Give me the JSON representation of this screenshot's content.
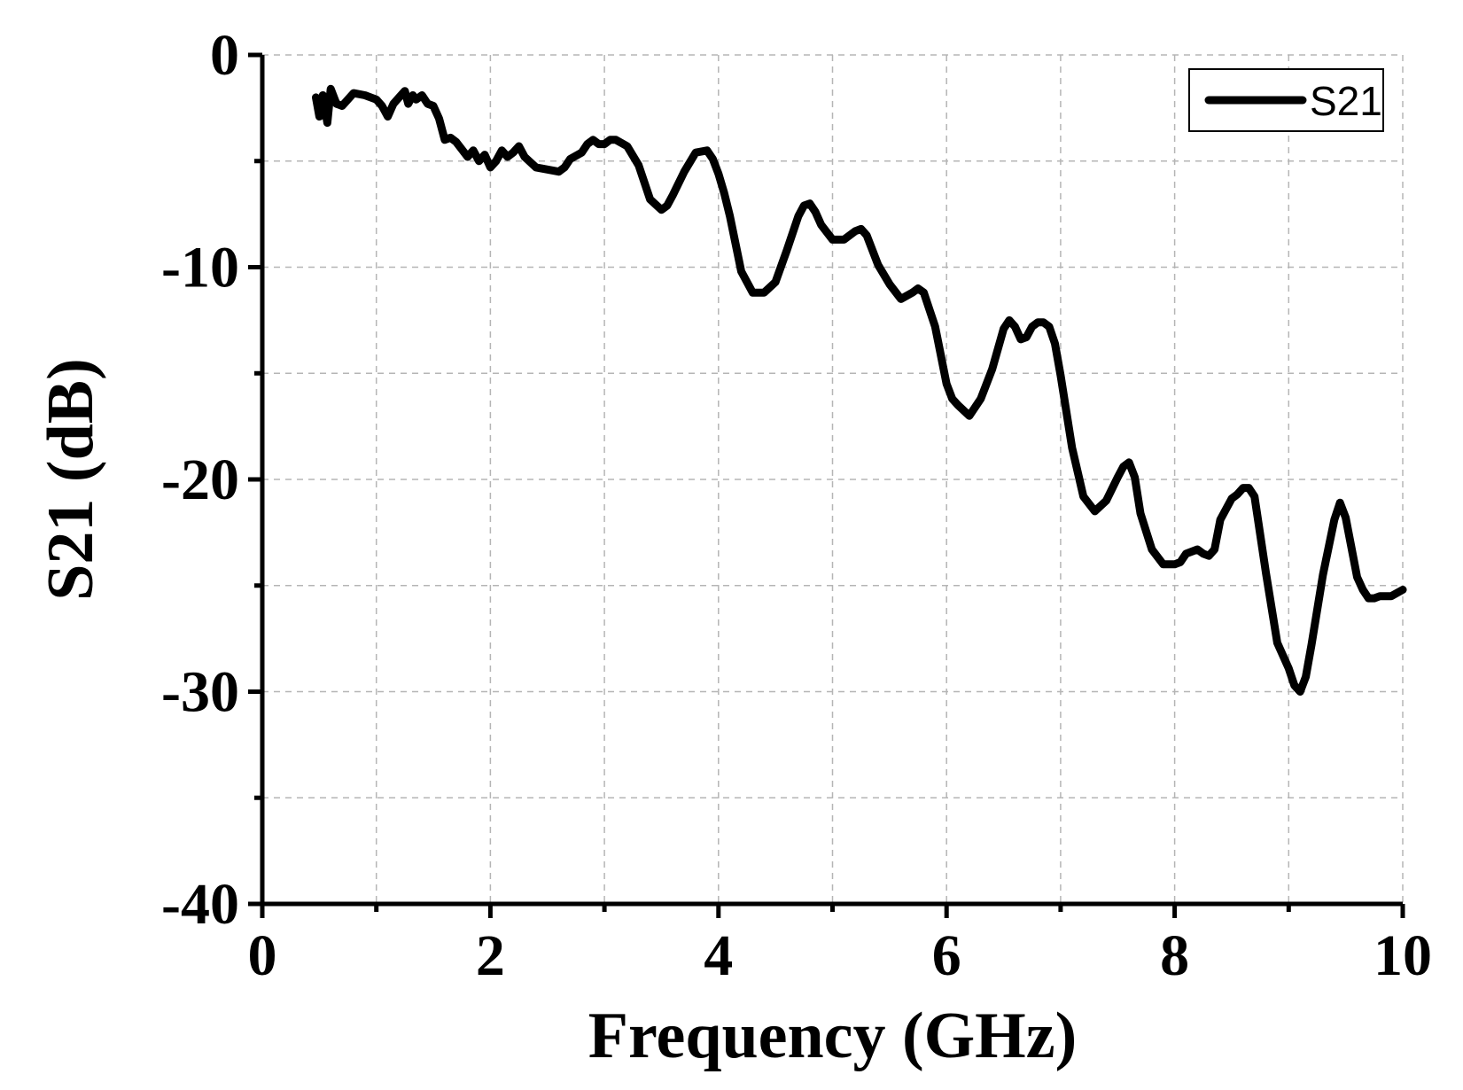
{
  "chart_data": {
    "type": "line",
    "title": "",
    "xlabel": "Frequency (GHz)",
    "ylabel": "S21 (dB)",
    "xlim": [
      0,
      10
    ],
    "ylim": [
      -40,
      0
    ],
    "x_ticks": [
      0,
      2,
      4,
      6,
      8,
      10
    ],
    "x_tick_labels": [
      "0",
      "2",
      "4",
      "6",
      "8",
      "10"
    ],
    "y_ticks": [
      0,
      -10,
      -20,
      -30,
      -40
    ],
    "y_tick_labels": [
      "0",
      "-10",
      "-20",
      "-30",
      "-40"
    ],
    "x_minor_step": 1,
    "y_minor_step": 5,
    "grid": true,
    "legend_position": "top-right",
    "series": [
      {
        "name": "S21",
        "color": "#000000",
        "x": [
          0.47,
          0.5,
          0.53,
          0.57,
          0.6,
          0.65,
          0.7,
          0.8,
          0.9,
          1.0,
          1.05,
          1.1,
          1.15,
          1.2,
          1.25,
          1.28,
          1.32,
          1.35,
          1.4,
          1.45,
          1.5,
          1.55,
          1.6,
          1.65,
          1.7,
          1.8,
          1.85,
          1.9,
          1.95,
          2.0,
          2.05,
          2.1,
          2.15,
          2.2,
          2.25,
          2.3,
          2.4,
          2.5,
          2.6,
          2.65,
          2.7,
          2.8,
          2.85,
          2.9,
          2.95,
          3.0,
          3.05,
          3.1,
          3.2,
          3.3,
          3.4,
          3.5,
          3.55,
          3.6,
          3.7,
          3.8,
          3.9,
          3.95,
          4.0,
          4.05,
          4.1,
          4.2,
          4.3,
          4.4,
          4.5,
          4.6,
          4.7,
          4.75,
          4.8,
          4.85,
          4.9,
          5.0,
          5.1,
          5.2,
          5.25,
          5.3,
          5.4,
          5.5,
          5.6,
          5.7,
          5.75,
          5.8,
          5.9,
          6.0,
          6.05,
          6.1,
          6.2,
          6.3,
          6.4,
          6.5,
          6.55,
          6.6,
          6.65,
          6.7,
          6.75,
          6.8,
          6.85,
          6.9,
          6.95,
          7.0,
          7.1,
          7.2,
          7.3,
          7.4,
          7.5,
          7.55,
          7.6,
          7.65,
          7.7,
          7.8,
          7.9,
          8.0,
          8.05,
          8.1,
          8.2,
          8.25,
          8.3,
          8.35,
          8.4,
          8.5,
          8.55,
          8.6,
          8.65,
          8.7,
          8.8,
          8.9,
          9.0,
          9.05,
          9.1,
          9.15,
          9.2,
          9.3,
          9.4,
          9.45,
          9.5,
          9.6,
          9.65,
          9.7,
          9.75,
          9.8,
          9.9,
          10.0
        ],
        "y": [
          -2.0,
          -2.9,
          -1.9,
          -3.2,
          -1.6,
          -2.3,
          -2.4,
          -1.8,
          -1.9,
          -2.1,
          -2.4,
          -2.9,
          -2.3,
          -2.0,
          -1.7,
          -2.3,
          -1.9,
          -2.1,
          -1.9,
          -2.3,
          -2.4,
          -3.0,
          -4.0,
          -3.9,
          -4.1,
          -4.8,
          -4.5,
          -5.0,
          -4.7,
          -5.3,
          -5.0,
          -4.5,
          -4.8,
          -4.6,
          -4.3,
          -4.8,
          -5.3,
          -5.4,
          -5.5,
          -5.3,
          -4.9,
          -4.6,
          -4.2,
          -4.0,
          -4.2,
          -4.2,
          -4.0,
          -4.0,
          -4.3,
          -5.2,
          -6.8,
          -7.3,
          -7.1,
          -6.6,
          -5.5,
          -4.6,
          -4.5,
          -4.9,
          -5.6,
          -6.5,
          -7.6,
          -10.2,
          -11.2,
          -11.2,
          -10.7,
          -9.2,
          -7.6,
          -7.1,
          -7.0,
          -7.4,
          -8.0,
          -8.7,
          -8.7,
          -8.3,
          -8.2,
          -8.5,
          -9.9,
          -10.8,
          -11.5,
          -11.2,
          -11.0,
          -11.2,
          -12.8,
          -15.5,
          -16.2,
          -16.5,
          -17.0,
          -16.2,
          -14.8,
          -12.9,
          -12.5,
          -12.8,
          -13.4,
          -13.3,
          -12.8,
          -12.6,
          -12.6,
          -12.8,
          -13.6,
          -15.1,
          -18.5,
          -20.8,
          -21.5,
          -21.0,
          -19.9,
          -19.4,
          -19.2,
          -19.9,
          -21.6,
          -23.3,
          -24.0,
          -24.0,
          -23.9,
          -23.5,
          -23.3,
          -23.5,
          -23.6,
          -23.3,
          -21.9,
          -20.9,
          -20.7,
          -20.4,
          -20.4,
          -20.8,
          -24.4,
          -27.7,
          -28.9,
          -29.7,
          -30.0,
          -29.3,
          -27.8,
          -24.5,
          -21.9,
          -21.1,
          -21.8,
          -24.6,
          -25.2,
          -25.6,
          -25.6,
          -25.5,
          -25.5,
          -25.2
        ]
      }
    ]
  }
}
